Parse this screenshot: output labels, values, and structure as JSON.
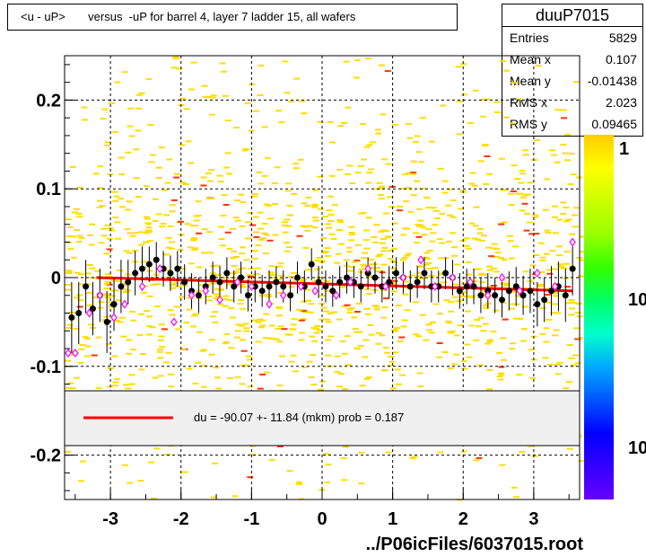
{
  "title": "<u - uP>       versus  -uP for barrel 4, layer 7 ladder 15, all wafers",
  "stats": {
    "name": "duuP7015",
    "rows": [
      {
        "label": "Entries",
        "value": "5829"
      },
      {
        "label": "Mean x",
        "value": "0.107"
      },
      {
        "label": "Mean y",
        "value": "-0.01438"
      },
      {
        "label": "RMS x",
        "value": "2.023"
      },
      {
        "label": "RMS y",
        "value": "0.09465"
      }
    ]
  },
  "footer": "../P06icFiles/6037015.root",
  "legend": {
    "text": "du =  -90.07 +- 11.84 (mkm) prob = 0.187",
    "line_color": "#ff0000"
  },
  "colors": {
    "fit": "#ff0000",
    "points": "#000000",
    "open_markers": "#ff00ff",
    "cells": "#ffdd00",
    "hot_cells": "#ff3300"
  },
  "zaxis_labels": [
    "1",
    "10",
    "10"
  ],
  "chart_data": {
    "type": "heatmap",
    "xlim": [
      -3.65,
      3.65
    ],
    "ylim": [
      -0.25,
      0.25
    ],
    "xticks": [
      -3,
      -2,
      -1,
      0,
      1,
      2,
      3
    ],
    "xtick_labels": [
      "-3",
      "-2",
      "-1",
      "0",
      "1",
      "2",
      "3"
    ],
    "yticks": [
      -0.2,
      -0.1,
      0,
      0.1,
      0.2
    ],
    "ytick_labels": [
      "-0.2",
      "-0.1",
      "0",
      "0.1",
      "0.2"
    ],
    "grid": true,
    "fit_line": {
      "x": [
        -3.2,
        3.55
      ],
      "y": [
        0.0,
        -0.015
      ]
    },
    "profile_points": {
      "x": [
        -3.55,
        -3.45,
        -3.35,
        -3.25,
        -3.15,
        -3.05,
        -2.95,
        -2.85,
        -2.75,
        -2.65,
        -2.55,
        -2.45,
        -2.35,
        -2.25,
        -2.15,
        -2.05,
        -1.95,
        -1.85,
        -1.75,
        -1.65,
        -1.55,
        -1.45,
        -1.35,
        -1.25,
        -1.15,
        -1.05,
        -0.95,
        -0.85,
        -0.75,
        -0.65,
        -0.55,
        -0.45,
        -0.35,
        -0.25,
        -0.15,
        -0.05,
        0.05,
        0.15,
        0.25,
        0.35,
        0.45,
        0.55,
        0.65,
        0.75,
        0.85,
        0.95,
        1.05,
        1.15,
        1.25,
        1.35,
        1.45,
        1.55,
        1.65,
        1.75,
        1.85,
        1.95,
        2.05,
        2.15,
        2.25,
        2.35,
        2.45,
        2.55,
        2.65,
        2.75,
        2.85,
        2.95,
        3.05,
        3.15,
        3.25,
        3.35,
        3.45,
        3.55
      ],
      "y": [
        -0.045,
        -0.04,
        -0.01,
        -0.035,
        -0.02,
        -0.05,
        -0.03,
        -0.01,
        -0.005,
        0.005,
        0.01,
        0.015,
        0.02,
        0.01,
        0.005,
        0.01,
        -0.005,
        -0.015,
        -0.02,
        -0.01,
        0.0,
        -0.005,
        0.005,
        -0.01,
        0.0,
        -0.02,
        -0.01,
        -0.015,
        -0.01,
        -0.005,
        -0.01,
        -0.02,
        0.0,
        -0.01,
        0.015,
        -0.005,
        -0.01,
        -0.015,
        -0.005,
        0.0,
        -0.005,
        -0.01,
        0.005,
        0.0,
        -0.01,
        -0.005,
        0.005,
        0.0,
        -0.01,
        -0.005,
        0.005,
        -0.01,
        -0.01,
        0.005,
        0.0,
        -0.015,
        -0.01,
        -0.01,
        -0.02,
        -0.015,
        -0.02,
        -0.025,
        -0.015,
        -0.01,
        -0.02,
        -0.015,
        -0.03,
        -0.025,
        -0.015,
        -0.01,
        -0.02,
        0.01
      ],
      "err": [
        0.04,
        0.035,
        0.03,
        0.03,
        0.03,
        0.035,
        0.03,
        0.03,
        0.025,
        0.025,
        0.025,
        0.02,
        0.02,
        0.02,
        0.02,
        0.02,
        0.02,
        0.02,
        0.02,
        0.02,
        0.018,
        0.018,
        0.018,
        0.018,
        0.018,
        0.018,
        0.018,
        0.018,
        0.018,
        0.018,
        0.018,
        0.018,
        0.018,
        0.018,
        0.018,
        0.018,
        0.018,
        0.018,
        0.018,
        0.018,
        0.018,
        0.018,
        0.018,
        0.018,
        0.018,
        0.018,
        0.018,
        0.018,
        0.018,
        0.018,
        0.018,
        0.018,
        0.018,
        0.018,
        0.02,
        0.02,
        0.02,
        0.02,
        0.02,
        0.02,
        0.02,
        0.02,
        0.022,
        0.022,
        0.022,
        0.025,
        0.025,
        0.025,
        0.028,
        0.028,
        0.03,
        0.03
      ]
    },
    "open_points": {
      "x": [
        -3.6,
        -3.5,
        -3.3,
        -3.15,
        -2.95,
        -2.8,
        -2.55,
        -2.3,
        -2.1,
        -1.85,
        -1.65,
        -1.45,
        -1.2,
        -1.0,
        -0.75,
        -0.55,
        -0.3,
        -0.1,
        0.2,
        0.4,
        0.65,
        0.9,
        1.15,
        1.4,
        1.6,
        1.85,
        2.1,
        2.35,
        2.55,
        2.8,
        3.05,
        3.3,
        3.55
      ],
      "y": [
        -0.085,
        -0.085,
        -0.04,
        -0.02,
        -0.045,
        -0.03,
        -0.01,
        0.01,
        -0.05,
        -0.02,
        -0.015,
        -0.025,
        -0.005,
        -0.01,
        -0.03,
        -0.02,
        -0.01,
        -0.015,
        -0.02,
        -0.005,
        0.01,
        -0.01,
        0.0,
        0.02,
        -0.01,
        0.0,
        -0.005,
        -0.02,
        0.0,
        -0.015,
        0.005,
        -0.01,
        0.04
      ]
    },
    "colorbar_stops": [
      "#6600ff",
      "#3300ff",
      "#0000ff",
      "#0055ff",
      "#00aaff",
      "#00ffcc",
      "#00ff66",
      "#33ff00",
      "#99ff00",
      "#ccff00",
      "#ffff00",
      "#ffcc00"
    ]
  }
}
